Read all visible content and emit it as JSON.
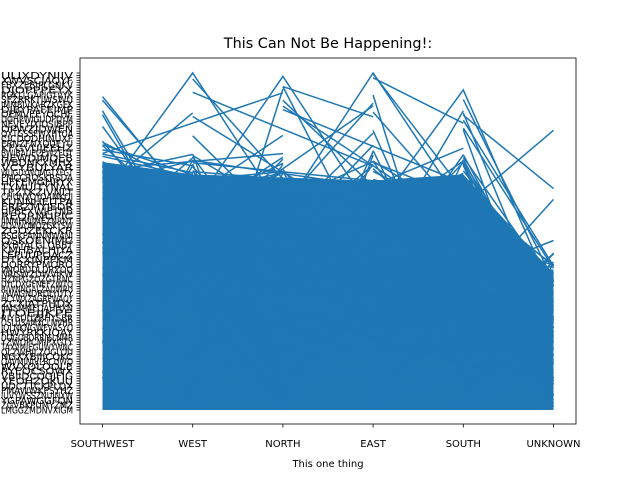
{
  "chart_data": {
    "type": "line",
    "title": "This Can Not Be Happening!:",
    "xlabel": "This one thing",
    "ylabel": "",
    "categories": [
      "SOUTHWEST",
      "WEST",
      "NORTH",
      "EAST",
      "SOUTH",
      "UNKNOWN"
    ],
    "ylim": [
      0,
      1
    ],
    "y_axis": "categorical, many overlapping unreadable tick labels",
    "grid": false,
    "legend": "none",
    "series_color": "#1f77b4",
    "peaks": {
      "SOUTHWEST": 0.93,
      "WEST": 1.0,
      "NORTH": 0.99,
      "EAST": 1.0,
      "SOUTH": 0.95,
      "UNKNOWN": 0.83
    },
    "dense_band_top": {
      "SOUTHWEST": 0.8,
      "WEST": 0.76,
      "NORTH": 0.75,
      "EAST": 0.74,
      "SOUTH": 0.76,
      "UNKNOWN": 0.44
    },
    "segment_count": 400
  }
}
